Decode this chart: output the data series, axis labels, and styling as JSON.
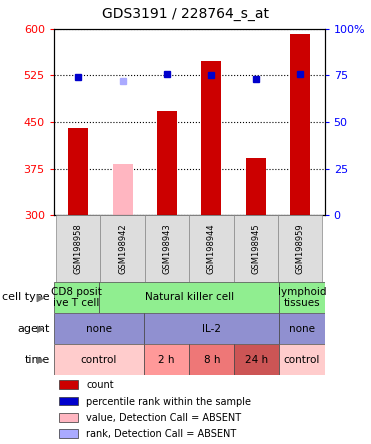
{
  "title": "GDS3191 / 228764_s_at",
  "samples": [
    "GSM198958",
    "GSM198942",
    "GSM198943",
    "GSM198944",
    "GSM198945",
    "GSM198959"
  ],
  "count_values": [
    440,
    null,
    468,
    548,
    393,
    592
  ],
  "count_absent": [
    null,
    383,
    null,
    null,
    null,
    null
  ],
  "percentile_values": [
    74,
    null,
    76,
    75,
    73,
    76
  ],
  "percentile_absent": [
    null,
    72,
    null,
    null,
    null,
    null
  ],
  "y_min": 300,
  "y_max": 600,
  "y_ticks": [
    300,
    375,
    450,
    525,
    600
  ],
  "y2_ticks": [
    0,
    25,
    50,
    75,
    100
  ],
  "cell_type_data": [
    {
      "label": "CD8 posit\nive T cell",
      "color": "#90EE90",
      "start": 0,
      "end": 1
    },
    {
      "label": "Natural killer cell",
      "color": "#90EE90",
      "start": 1,
      "end": 5
    },
    {
      "label": "lymphoid\ntissues",
      "color": "#90EE90",
      "start": 5,
      "end": 6
    }
  ],
  "agent_data": [
    {
      "label": "none",
      "color": "#9090D0",
      "start": 0,
      "end": 2
    },
    {
      "label": "IL-2",
      "color": "#9090D0",
      "start": 2,
      "end": 5
    },
    {
      "label": "none",
      "color": "#9090D0",
      "start": 5,
      "end": 6
    }
  ],
  "time_data": [
    {
      "label": "control",
      "color": "#FFCCCC",
      "start": 0,
      "end": 2
    },
    {
      "label": "2 h",
      "color": "#FF9999",
      "start": 2,
      "end": 3
    },
    {
      "label": "8 h",
      "color": "#EE7777",
      "start": 3,
      "end": 4
    },
    {
      "label": "24 h",
      "color": "#CC5555",
      "start": 4,
      "end": 5
    },
    {
      "label": "control",
      "color": "#FFCCCC",
      "start": 5,
      "end": 6
    }
  ],
  "bar_color_present": "#CC0000",
  "bar_color_absent": "#FFB6C1",
  "dot_color_present": "#0000CC",
  "dot_color_absent": "#AAAAFF",
  "legend_items": [
    {
      "color": "#CC0000",
      "label": "count"
    },
    {
      "color": "#0000CC",
      "label": "percentile rank within the sample"
    },
    {
      "color": "#FFB6C1",
      "label": "value, Detection Call = ABSENT"
    },
    {
      "color": "#AAAAFF",
      "label": "rank, Detection Call = ABSENT"
    }
  ]
}
